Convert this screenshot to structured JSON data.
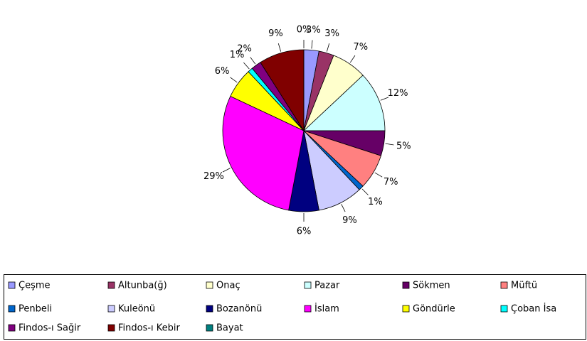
{
  "chart_data": {
    "type": "pie",
    "categories": [
      "Çeşme",
      "Altunba(ğ)",
      "Onaç",
      "Pazar",
      "Sökmen",
      "Müftü",
      "Penbeli",
      "Kuleönü",
      "Bozanönü",
      "İslam",
      "Göndürle",
      "Çoban İsa",
      "Findos-ı Sağir",
      "Findos-ı Kebir",
      "Bayat"
    ],
    "values": [
      3,
      3,
      7,
      12,
      5,
      7,
      1,
      9,
      6,
      29,
      6,
      1,
      2,
      9,
      0
    ],
    "value_labels": [
      "3%",
      "3%",
      "7%",
      "12%",
      "5%",
      "7%",
      "1%",
      "9%",
      "6%",
      "29%",
      "6%",
      "1%",
      "2%",
      "9%",
      "0%"
    ],
    "colors": [
      "#9999ff",
      "#993366",
      "#ffffcc",
      "#ccffff",
      "#660066",
      "#ff8080",
      "#0066cc",
      "#ccccff",
      "#000080",
      "#ff00ff",
      "#ffff00",
      "#00ffff",
      "#800080",
      "#800000",
      "#008080"
    ],
    "legend": "bottom"
  }
}
